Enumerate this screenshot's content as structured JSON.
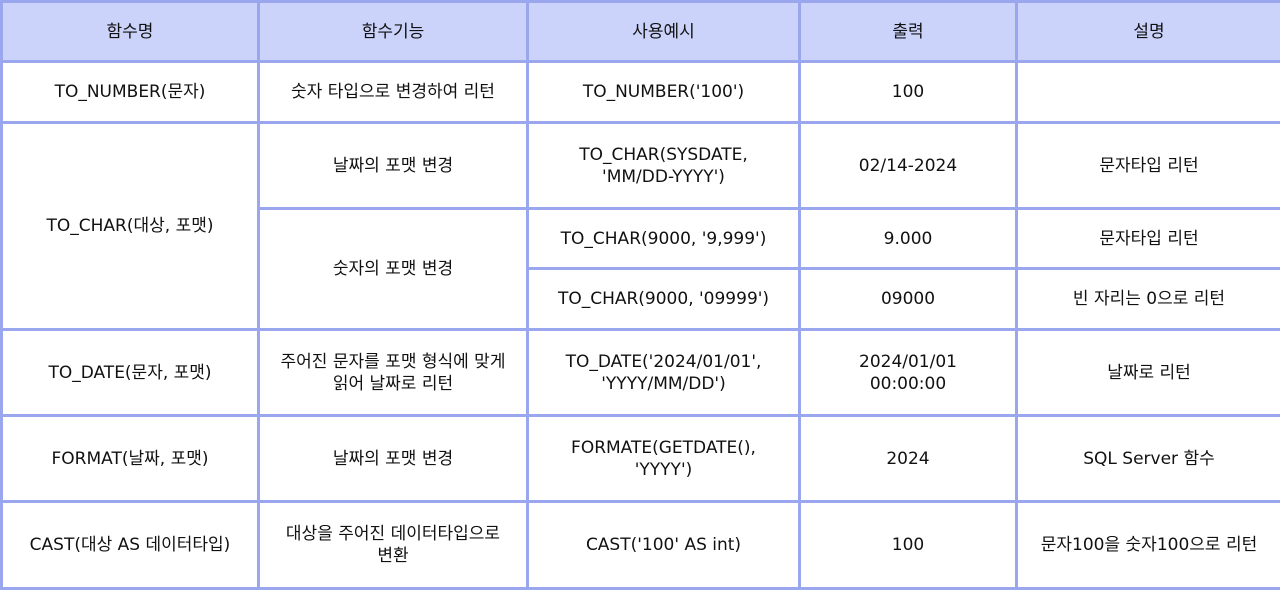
{
  "table": {
    "headers": [
      "함수명",
      "함수기능",
      "사용예시",
      "출력",
      "설명"
    ],
    "rows": {
      "to_number": {
        "name": "TO_NUMBER(문자)",
        "func": "숫자 타입으로 변경하여 리턴",
        "example": "TO_NUMBER('100')",
        "output": "100",
        "desc": ""
      },
      "to_char": {
        "name": "TO_CHAR(대상, 포맷)",
        "date_func": "날짜의 포맷 변경",
        "date_example": "TO_CHAR(SYSDATE,\n'MM/DD-YYYY')",
        "date_output": "02/14-2024",
        "date_desc": "문자타입 리턴",
        "num_func": "숫자의 포맷 변경",
        "num1_example": "TO_CHAR(9000, '9,999')",
        "num1_output": "9.000",
        "num1_desc": "문자타입 리턴",
        "num2_example": "TO_CHAR(9000, '09999')",
        "num2_output": "09000",
        "num2_desc": "빈 자리는 0으로 리턴"
      },
      "to_date": {
        "name": "TO_DATE(문자, 포맷)",
        "func": "주어진 문자를 포맷 형식에 맞게\n읽어 날짜로 리턴",
        "example": "TO_DATE('2024/01/01',\n'YYYY/MM/DD')",
        "output": "2024/01/01\n00:00:00",
        "desc": "날짜로 리턴"
      },
      "format": {
        "name": "FORMAT(날짜, 포맷)",
        "func": "날짜의 포맷 변경",
        "example": "FORMATE(GETDATE(),\n'YYYY')",
        "output": "2024",
        "desc": "SQL Server 함수"
      },
      "cast": {
        "name": "CAST(대상 AS 데이터타입)",
        "func": "대상을 주어진 데이터타입으로\n변환",
        "example": "CAST('100' AS int)",
        "output": "100",
        "desc": "문자100을 숫자100으로 리턴"
      }
    }
  }
}
